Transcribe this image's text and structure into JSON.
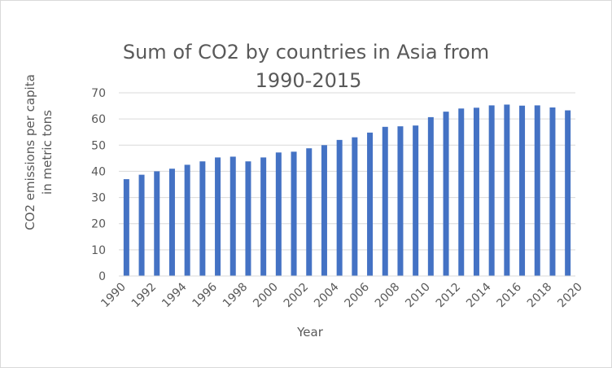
{
  "chart_data": {
    "type": "bar",
    "title_lines": [
      "Sum of CO2 by countries in Asia from",
      "1990-2015"
    ],
    "xlabel": "Year",
    "ylabel_lines": [
      "CO2 emissions per capita",
      "in metric tons"
    ],
    "ylim": [
      0,
      70
    ],
    "yticks": [
      0,
      10,
      20,
      30,
      40,
      50,
      60,
      70
    ],
    "xlim": [
      1990,
      2020
    ],
    "xticks": [
      1990,
      1992,
      1994,
      1996,
      1998,
      2000,
      2002,
      2004,
      2006,
      2008,
      2010,
      2012,
      2014,
      2016,
      2018,
      2020
    ],
    "grid": true,
    "bar_color": "#4472c4",
    "grid_color": "#d9d9d9",
    "x": [
      1990,
      1991,
      1992,
      1993,
      1994,
      1995,
      1996,
      1997,
      1998,
      1999,
      2000,
      2001,
      2002,
      2003,
      2004,
      2005,
      2006,
      2007,
      2008,
      2009,
      2010,
      2011,
      2012,
      2013,
      2014,
      2015,
      2016,
      2017,
      2018,
      2019
    ],
    "values": [
      37,
      38.7,
      40,
      41,
      42.5,
      43.8,
      45.3,
      45.6,
      43.8,
      45.3,
      47.2,
      47.5,
      48.8,
      50,
      52,
      53,
      54.8,
      57,
      57.2,
      57.5,
      60.7,
      62.8,
      64,
      64.3,
      65.2,
      65.5,
      65.1,
      65.2,
      64.4,
      63.3
    ]
  }
}
